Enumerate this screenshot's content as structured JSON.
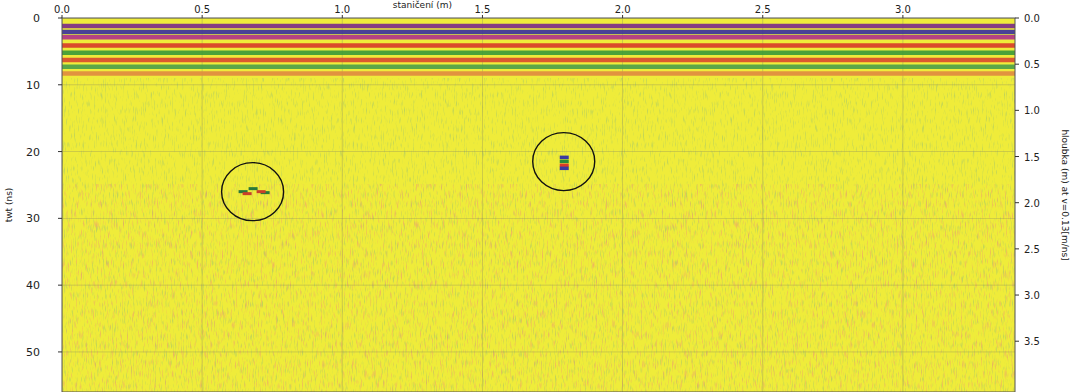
{
  "chart_data": {
    "type": "radargram",
    "x_label": "staničení (m)",
    "y_label": "twt (ns)",
    "y2_label": "hloubka (m) at v=0.13[m/ns]",
    "color": "#efec3a",
    "grid": true,
    "xlim": [
      0,
      3.4
    ],
    "xticks": [
      {
        "value": 0,
        "label": "0.0"
      },
      {
        "value": 0.5,
        "label": "0.5"
      },
      {
        "value": 1,
        "label": "1.0"
      },
      {
        "value": 1.5,
        "label": "1.5"
      },
      {
        "value": 2,
        "label": "2.0"
      },
      {
        "value": 2.5,
        "label": "2.5"
      },
      {
        "value": 3,
        "label": "3.0"
      }
    ],
    "ylim": [
      0,
      56
    ],
    "yticks": [
      0,
      10,
      20,
      30,
      40,
      50
    ],
    "y2lim": [
      0,
      4.05
    ],
    "y2ticks": [
      {
        "value": 0,
        "label": "0.0"
      },
      {
        "value": 0.5,
        "label": "0.5"
      },
      {
        "value": 1,
        "label": "1.0"
      },
      {
        "value": 1.5,
        "label": "1.5"
      },
      {
        "value": 2,
        "label": "2.0"
      },
      {
        "value": 2.5,
        "label": "2.5"
      },
      {
        "value": 3,
        "label": "3.0"
      },
      {
        "value": 3.5,
        "label": "3.5"
      }
    ],
    "bands": [
      {
        "twt": 1.2,
        "color": "#7a2a8a"
      },
      {
        "twt": 2.1,
        "color": "#3a2fa0"
      },
      {
        "twt": 2.9,
        "color": "#b0308a"
      },
      {
        "twt": 4.1,
        "color": "#d83a2a"
      },
      {
        "twt": 5.2,
        "color": "#3a9a3a"
      },
      {
        "twt": 6.3,
        "color": "#d84a30"
      },
      {
        "twt": 7.3,
        "color": "#4aa04a"
      },
      {
        "twt": 8.3,
        "color": "#e08a40"
      }
    ],
    "markers": [
      {
        "x": 0.68,
        "y": 26
      },
      {
        "x": 1.79,
        "y": 21.5
      }
    ]
  }
}
